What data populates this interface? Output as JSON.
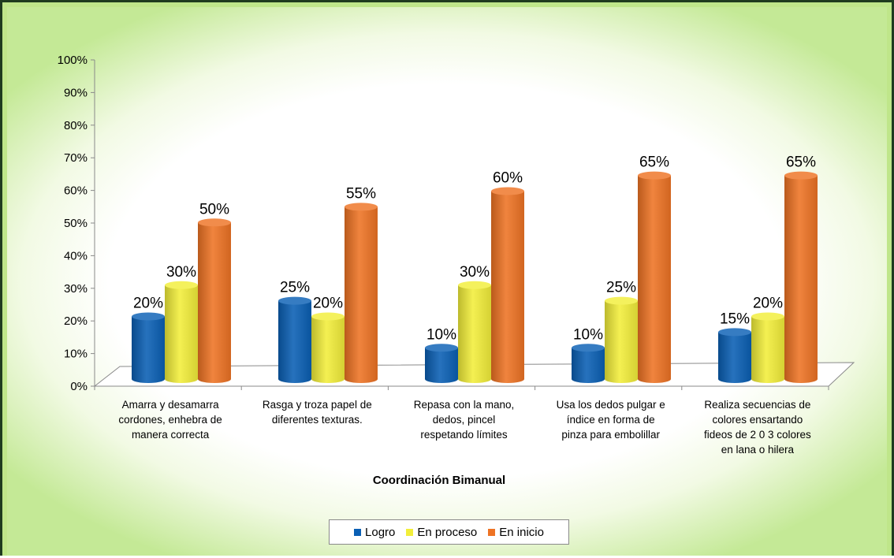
{
  "chart_data": {
    "type": "bar",
    "title": "",
    "xlabel": "Coordinación Bimanual",
    "ylabel": "",
    "ylim": [
      0,
      100
    ],
    "yticks": [
      "0%",
      "10%",
      "20%",
      "30%",
      "40%",
      "50%",
      "60%",
      "70%",
      "80%",
      "90%",
      "100%"
    ],
    "categories": [
      [
        "Amarra y desamarra",
        "cordones, enhebra de",
        "manera correcta"
      ],
      [
        "Rasga y troza papel de",
        "diferentes texturas."
      ],
      [
        "Repasa con la mano,",
        "dedos, pincel",
        "respetando límites"
      ],
      [
        "Usa los dedos  pulgar e",
        "índice  en forma de",
        "pinza para embolillar"
      ],
      [
        "Realiza secuencias de",
        "colores ensartando",
        "fideos de 2 0 3 colores",
        "en lana o hilera"
      ]
    ],
    "series": [
      {
        "name": "Logro",
        "color": "#0a5fb4",
        "values": [
          20,
          25,
          10,
          10,
          15
        ],
        "labels": [
          "20%",
          "25%",
          "10%",
          "10%",
          "15%"
        ]
      },
      {
        "name": "En proceso",
        "color": "#f2ee3a",
        "values": [
          30,
          20,
          30,
          25,
          20
        ],
        "labels": [
          "30%",
          "20%",
          "30%",
          "25%",
          "20%"
        ]
      },
      {
        "name": "En inicio",
        "color": "#ee7324",
        "values": [
          50,
          55,
          60,
          65,
          65
        ],
        "labels": [
          "50%",
          "55%",
          "60%",
          "65%",
          "65%"
        ]
      }
    ],
    "legend_position": "bottom",
    "grid": false
  }
}
